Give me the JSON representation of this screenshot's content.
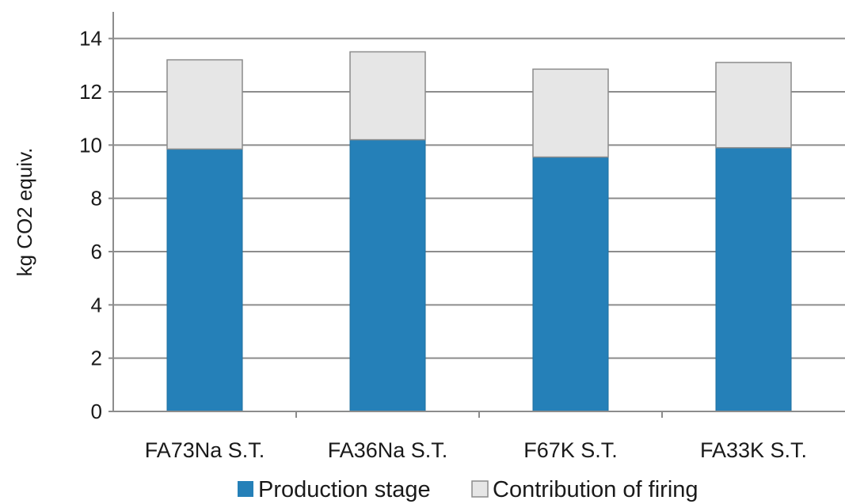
{
  "chart_data": {
    "type": "bar",
    "stacked": true,
    "title": "",
    "xlabel": "",
    "ylabel": "kg CO2 equiv.",
    "ylim": [
      0,
      15
    ],
    "yticks": [
      0,
      2,
      4,
      6,
      8,
      10,
      12,
      14
    ],
    "grid": true,
    "legend_position": "bottom",
    "categories": [
      "FA73Na S.T.",
      "FA36Na S.T.",
      "F67K S.T.",
      "FA33K S.T."
    ],
    "series": [
      {
        "name": "Production stage",
        "values": [
          9.85,
          10.2,
          9.55,
          9.9
        ],
        "color": "#2580b8"
      },
      {
        "name": "Contribution of firing",
        "values": [
          3.35,
          3.3,
          3.3,
          3.2
        ],
        "color": "#e6e6e6"
      }
    ]
  }
}
